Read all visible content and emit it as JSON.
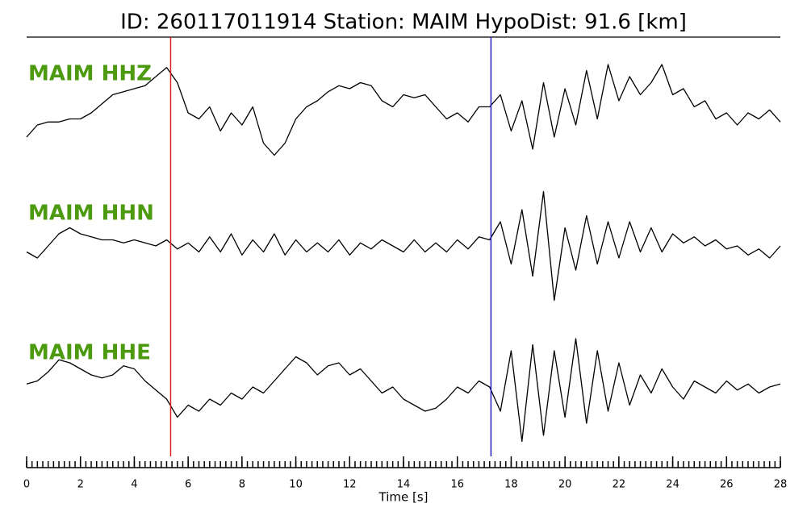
{
  "chart_data": {
    "type": "line",
    "title": "ID: 260117011914   Station: MAIM   HypoDist:    91.6 [km]",
    "xlabel": "Time [s]",
    "xlim": [
      0,
      28
    ],
    "xticks": [
      0,
      2,
      4,
      6,
      8,
      10,
      12,
      14,
      16,
      18,
      20,
      22,
      24,
      26,
      28
    ],
    "minor_tick_interval": 0.2,
    "ylim": [
      -1,
      1
    ],
    "label_color": "#4c9a0f",
    "picks": [
      {
        "x": 5.35,
        "color": "#e02020"
      },
      {
        "x": 17.25,
        "color": "#2020c0"
      }
    ],
    "x": [
      0,
      0.4,
      0.8,
      1.2,
      1.6,
      2,
      2.4,
      2.8,
      3.2,
      3.6,
      4,
      4.4,
      4.8,
      5.2,
      5.6,
      6,
      6.4,
      6.8,
      7.2,
      7.6,
      8,
      8.4,
      8.8,
      9.2,
      9.6,
      10,
      10.4,
      10.8,
      11.2,
      11.6,
      12,
      12.4,
      12.8,
      13.2,
      13.6,
      14,
      14.4,
      14.8,
      15.2,
      15.6,
      16,
      16.4,
      16.8,
      17.2,
      17.6,
      18,
      18.4,
      18.8,
      19.2,
      19.6,
      20,
      20.4,
      20.8,
      21.2,
      21.6,
      22,
      22.4,
      22.8,
      23.2,
      23.6,
      24,
      24.4,
      24.8,
      25.2,
      25.6,
      26,
      26.4,
      26.8,
      27.2,
      27.6,
      28
    ],
    "series": [
      {
        "name": "MAIM HHZ",
        "color": "#000000",
        "values": [
          -0.4,
          -0.2,
          -0.15,
          -0.15,
          -0.1,
          -0.1,
          0.0,
          0.15,
          0.3,
          0.35,
          0.4,
          0.45,
          0.6,
          0.75,
          0.5,
          0.0,
          -0.1,
          0.1,
          -0.3,
          0.0,
          -0.2,
          0.1,
          -0.5,
          -0.7,
          -0.5,
          -0.1,
          0.1,
          0.2,
          0.35,
          0.45,
          0.4,
          0.5,
          0.45,
          0.2,
          0.1,
          0.3,
          0.25,
          0.3,
          0.1,
          -0.1,
          0.0,
          -0.15,
          0.1,
          0.1,
          0.3,
          -0.3,
          0.2,
          -0.6,
          0.5,
          -0.4,
          0.4,
          -0.2,
          0.7,
          -0.1,
          0.8,
          0.2,
          0.6,
          0.3,
          0.5,
          0.8,
          0.3,
          0.4,
          0.1,
          0.2,
          -0.1,
          0.0,
          -0.2,
          0.0,
          -0.1,
          0.05,
          -0.15
        ]
      },
      {
        "name": "MAIM HHN",
        "color": "#000000",
        "values": [
          -0.1,
          -0.2,
          0.0,
          0.2,
          0.3,
          0.2,
          0.15,
          0.1,
          0.1,
          0.05,
          0.1,
          0.05,
          0.0,
          0.1,
          -0.05,
          0.05,
          -0.1,
          0.15,
          -0.1,
          0.2,
          -0.15,
          0.1,
          -0.1,
          0.2,
          -0.15,
          0.1,
          -0.1,
          0.05,
          -0.1,
          0.1,
          -0.15,
          0.05,
          -0.05,
          0.1,
          0.0,
          -0.1,
          0.1,
          -0.1,
          0.05,
          -0.1,
          0.1,
          -0.05,
          0.15,
          0.1,
          0.4,
          -0.3,
          0.6,
          -0.5,
          0.9,
          -0.9,
          0.3,
          -0.4,
          0.5,
          -0.3,
          0.4,
          -0.2,
          0.4,
          -0.1,
          0.3,
          -0.1,
          0.2,
          0.05,
          0.15,
          0.0,
          0.1,
          -0.05,
          0.0,
          -0.15,
          -0.05,
          -0.2,
          0.0
        ]
      },
      {
        "name": "MAIM HHE",
        "color": "#000000",
        "values": [
          0.05,
          0.1,
          0.25,
          0.45,
          0.4,
          0.3,
          0.2,
          0.15,
          0.2,
          0.35,
          0.3,
          0.1,
          -0.05,
          -0.2,
          -0.5,
          -0.3,
          -0.4,
          -0.2,
          -0.3,
          -0.1,
          -0.2,
          0.0,
          -0.1,
          0.1,
          0.3,
          0.5,
          0.4,
          0.2,
          0.35,
          0.4,
          0.2,
          0.3,
          0.1,
          -0.1,
          0.0,
          -0.2,
          -0.3,
          -0.4,
          -0.35,
          -0.2,
          0.0,
          -0.1,
          0.1,
          0.0,
          -0.4,
          0.6,
          -0.9,
          0.7,
          -0.8,
          0.6,
          -0.5,
          0.8,
          -0.6,
          0.6,
          -0.4,
          0.4,
          -0.3,
          0.2,
          -0.1,
          0.3,
          0.0,
          -0.2,
          0.1,
          0.0,
          -0.1,
          0.1,
          -0.05,
          0.05,
          -0.1,
          0.0,
          0.05
        ]
      }
    ]
  }
}
